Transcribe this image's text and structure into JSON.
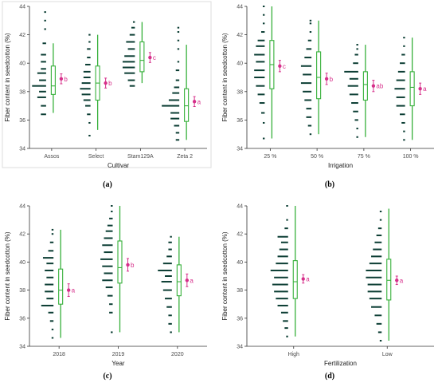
{
  "colors": {
    "dots": "#0b3d33",
    "box": "#36b03a",
    "mean": "#d62f8a",
    "panel_border": "#dddddd"
  },
  "chart_data": [
    {
      "panel": "(a)",
      "type": "raincloud",
      "xlabel": "Cultivar",
      "ylabel": "Fiber content in seedcotton (%)",
      "ylim": [
        34,
        44
      ],
      "yticks": [
        34,
        36,
        38,
        40,
        42,
        44
      ],
      "categories": [
        "Assos",
        "Select",
        "Stam129A",
        "Zeta 2"
      ],
      "boxes": [
        {
          "whisker_low": 36.5,
          "q1": 37.8,
          "median": 38.4,
          "q3": 39.8,
          "whisker_high": 41.4
        },
        {
          "whisker_low": 35.3,
          "q1": 37.4,
          "median": 38.6,
          "q3": 39.8,
          "whisker_high": 42.0
        },
        {
          "whisker_low": 38.6,
          "q1": 39.4,
          "median": 40.2,
          "q3": 41.5,
          "whisker_high": 42.9
        },
        {
          "whisker_low": 34.6,
          "q1": 35.9,
          "median": 37.0,
          "q3": 38.2,
          "whisker_high": 41.3
        }
      ],
      "means": [
        38.9,
        38.6,
        40.4,
        37.3
      ],
      "ci": [
        0.35,
        0.35,
        0.35,
        0.35
      ],
      "letters": [
        "b",
        "b",
        "c",
        "a"
      ],
      "dots": [
        [
          [
            36.4,
            3
          ],
          [
            37.0,
            3
          ],
          [
            37.6,
            5
          ],
          [
            38.0,
            4
          ],
          [
            38.4,
            8
          ],
          [
            38.8,
            4
          ],
          [
            39.3,
            5
          ],
          [
            39.6,
            3
          ],
          [
            40.1,
            3
          ],
          [
            40.6,
            3
          ],
          [
            41.4,
            2
          ],
          [
            42.4,
            1
          ],
          [
            43.0,
            1
          ],
          [
            43.6,
            1
          ]
        ],
        [
          [
            34.9,
            1
          ],
          [
            35.8,
            1
          ],
          [
            36.4,
            2
          ],
          [
            37.0,
            3
          ],
          [
            37.4,
            4
          ],
          [
            37.8,
            5
          ],
          [
            38.2,
            6
          ],
          [
            38.6,
            5
          ],
          [
            39.0,
            4
          ],
          [
            39.4,
            4
          ],
          [
            39.9,
            3
          ],
          [
            40.4,
            2
          ],
          [
            41.0,
            2
          ],
          [
            41.5,
            1
          ],
          [
            42.0,
            1
          ]
        ],
        [
          [
            38.4,
            3
          ],
          [
            38.8,
            4
          ],
          [
            39.3,
            6
          ],
          [
            39.7,
            7
          ],
          [
            40.1,
            7
          ],
          [
            40.5,
            6
          ],
          [
            41.0,
            4
          ],
          [
            41.5,
            5
          ],
          [
            42.0,
            3
          ],
          [
            42.5,
            2
          ],
          [
            42.9,
            1
          ]
        ],
        [
          [
            34.6,
            2
          ],
          [
            35.1,
            2
          ],
          [
            35.6,
            3
          ],
          [
            36.1,
            5
          ],
          [
            36.5,
            5
          ],
          [
            37.0,
            10
          ],
          [
            37.4,
            6
          ],
          [
            37.9,
            4
          ],
          [
            38.3,
            3
          ],
          [
            38.8,
            2
          ],
          [
            39.5,
            2
          ],
          [
            40.1,
            1
          ],
          [
            41.0,
            1
          ],
          [
            41.6,
            1
          ],
          [
            42.2,
            1
          ],
          [
            42.5,
            1
          ]
        ]
      ]
    },
    {
      "panel": "(b)",
      "type": "raincloud",
      "xlabel": "Irrigation",
      "ylabel": "Fiber content in seedcotton (%)",
      "ylim": [
        34,
        44
      ],
      "yticks": [
        34,
        36,
        38,
        40,
        42,
        44
      ],
      "categories": [
        "25 %",
        "50 %",
        "75 %",
        "100 %"
      ],
      "boxes": [
        {
          "whisker_low": 34.7,
          "q1": 38.2,
          "median": 39.9,
          "q3": 41.6,
          "whisker_high": 44.0
        },
        {
          "whisker_low": 35.0,
          "q1": 37.5,
          "median": 39.0,
          "q3": 40.8,
          "whisker_high": 43.0
        },
        {
          "whisker_low": 34.8,
          "q1": 37.4,
          "median": 38.5,
          "q3": 39.4,
          "whisker_high": 41.3
        },
        {
          "whisker_low": 34.6,
          "q1": 37.0,
          "median": 38.3,
          "q3": 39.4,
          "whisker_high": 41.8
        }
      ],
      "means": [
        39.8,
        38.9,
        38.4,
        38.2
      ],
      "ci": [
        0.4,
        0.4,
        0.4,
        0.4
      ],
      "letters": [
        "c",
        "b",
        "ab",
        "a"
      ],
      "dots": [
        [
          [
            34.7,
            1
          ],
          [
            35.8,
            1
          ],
          [
            36.5,
            2
          ],
          [
            37.2,
            3
          ],
          [
            37.8,
            4
          ],
          [
            38.4,
            5
          ],
          [
            39.0,
            6
          ],
          [
            39.5,
            6
          ],
          [
            40.1,
            5
          ],
          [
            40.6,
            6
          ],
          [
            41.2,
            5
          ],
          [
            41.6,
            4
          ],
          [
            42.2,
            2
          ],
          [
            42.8,
            1
          ],
          [
            43.4,
            1
          ],
          [
            44.0,
            1
          ]
        ],
        [
          [
            35.0,
            1
          ],
          [
            35.6,
            2
          ],
          [
            36.2,
            3
          ],
          [
            36.8,
            3
          ],
          [
            37.4,
            4
          ],
          [
            38.0,
            5
          ],
          [
            38.6,
            6
          ],
          [
            39.2,
            5
          ],
          [
            39.8,
            6
          ],
          [
            40.4,
            4
          ],
          [
            41.0,
            3
          ],
          [
            41.6,
            2
          ],
          [
            42.2,
            1
          ],
          [
            42.8,
            1
          ],
          [
            43.0,
            1
          ]
        ],
        [
          [
            34.8,
            1
          ],
          [
            35.4,
            1
          ],
          [
            36.0,
            2
          ],
          [
            36.6,
            3
          ],
          [
            37.2,
            4
          ],
          [
            37.8,
            5
          ],
          [
            38.4,
            6
          ],
          [
            38.9,
            5
          ],
          [
            39.4,
            8
          ],
          [
            40.0,
            3
          ],
          [
            40.6,
            2
          ],
          [
            41.0,
            1
          ],
          [
            41.3,
            1
          ]
        ],
        [
          [
            34.6,
            1
          ],
          [
            35.2,
            1
          ],
          [
            35.8,
            2
          ],
          [
            36.4,
            3
          ],
          [
            37.0,
            5
          ],
          [
            37.6,
            5
          ],
          [
            38.2,
            6
          ],
          [
            38.8,
            5
          ],
          [
            39.4,
            4
          ],
          [
            40.0,
            3
          ],
          [
            40.6,
            2
          ],
          [
            41.2,
            1
          ],
          [
            41.8,
            1
          ]
        ]
      ]
    },
    {
      "panel": "(c)",
      "type": "raincloud",
      "xlabel": "Year",
      "ylabel": "Fiber content in seedcotton (%)",
      "ylim": [
        34,
        44
      ],
      "yticks": [
        34,
        36,
        38,
        40,
        42,
        44
      ],
      "categories": [
        "2018",
        "2019",
        "2020"
      ],
      "boxes": [
        {
          "whisker_low": 34.6,
          "q1": 37.0,
          "median": 38.0,
          "q3": 39.5,
          "whisker_high": 42.3
        },
        {
          "whisker_low": 35.0,
          "q1": 38.5,
          "median": 39.6,
          "q3": 41.5,
          "whisker_high": 44.0
        },
        {
          "whisker_low": 35.0,
          "q1": 37.6,
          "median": 38.6,
          "q3": 39.8,
          "whisker_high": 41.8
        }
      ],
      "means": [
        38.0,
        39.8,
        38.7
      ],
      "ci": [
        0.45,
        0.45,
        0.45
      ],
      "letters": [
        "a",
        "b",
        "a"
      ],
      "dots": [
        [
          [
            34.6,
            1
          ],
          [
            35.2,
            1
          ],
          [
            35.8,
            2
          ],
          [
            36.4,
            3
          ],
          [
            36.9,
            7
          ],
          [
            37.4,
            4
          ],
          [
            37.9,
            5
          ],
          [
            38.4,
            5
          ],
          [
            38.9,
            4
          ],
          [
            39.4,
            5
          ],
          [
            39.9,
            4
          ],
          [
            40.3,
            6
          ],
          [
            40.8,
            3
          ],
          [
            41.4,
            2
          ],
          [
            42.0,
            1
          ],
          [
            42.3,
            1
          ]
        ],
        [
          [
            35.0,
            1
          ],
          [
            36.4,
            2
          ],
          [
            37.0,
            2
          ],
          [
            37.6,
            3
          ],
          [
            38.2,
            4
          ],
          [
            38.7,
            6
          ],
          [
            39.2,
            5
          ],
          [
            39.7,
            6
          ],
          [
            40.2,
            7
          ],
          [
            40.7,
            5
          ],
          [
            41.2,
            6
          ],
          [
            41.7,
            5
          ],
          [
            42.2,
            4
          ],
          [
            42.6,
            3
          ],
          [
            43.1,
            2
          ],
          [
            43.6,
            1
          ],
          [
            44.0,
            1
          ]
        ],
        [
          [
            35.0,
            1
          ],
          [
            35.6,
            2
          ],
          [
            36.2,
            2
          ],
          [
            36.8,
            3
          ],
          [
            37.4,
            4
          ],
          [
            38.0,
            5
          ],
          [
            38.6,
            6
          ],
          [
            39.0,
            4
          ],
          [
            39.4,
            8
          ],
          [
            39.9,
            5
          ],
          [
            40.4,
            3
          ],
          [
            40.9,
            2
          ],
          [
            41.4,
            2
          ],
          [
            41.8,
            1
          ]
        ]
      ]
    },
    {
      "panel": "(d)",
      "type": "raincloud",
      "xlabel": "Fertilization",
      "ylabel": "Fiber content in seedcotton (%)",
      "ylim": [
        34,
        44
      ],
      "yticks": [
        34,
        36,
        38,
        40,
        42,
        44
      ],
      "categories": [
        "High",
        "Low"
      ],
      "boxes": [
        {
          "whisker_low": 34.7,
          "q1": 37.4,
          "median": 38.6,
          "q3": 40.1,
          "whisker_high": 44.0
        },
        {
          "whisker_low": 34.4,
          "q1": 37.3,
          "median": 38.7,
          "q3": 40.2,
          "whisker_high": 43.8
        }
      ],
      "means": [
        38.8,
        38.7
      ],
      "ci": [
        0.3,
        0.3
      ],
      "letters": [
        "a",
        "a"
      ],
      "dots": [
        [
          [
            34.7,
            1
          ],
          [
            35.3,
            2
          ],
          [
            35.8,
            3
          ],
          [
            36.4,
            4
          ],
          [
            36.9,
            6
          ],
          [
            37.4,
            7
          ],
          [
            37.9,
            8
          ],
          [
            38.4,
            9
          ],
          [
            38.9,
            8
          ],
          [
            39.4,
            10
          ],
          [
            39.9,
            7
          ],
          [
            40.4,
            6
          ],
          [
            40.9,
            5
          ],
          [
            41.4,
            4
          ],
          [
            41.8,
            6
          ],
          [
            42.4,
            2
          ],
          [
            43.0,
            1
          ],
          [
            44.0,
            1
          ]
        ],
        [
          [
            34.4,
            1
          ],
          [
            35.0,
            2
          ],
          [
            35.6,
            3
          ],
          [
            36.2,
            4
          ],
          [
            36.8,
            6
          ],
          [
            37.4,
            7
          ],
          [
            37.9,
            8
          ],
          [
            38.4,
            8
          ],
          [
            38.9,
            9
          ],
          [
            39.4,
            9
          ],
          [
            39.9,
            7
          ],
          [
            40.4,
            6
          ],
          [
            40.9,
            5
          ],
          [
            41.4,
            4
          ],
          [
            41.9,
            3
          ],
          [
            42.4,
            2
          ],
          [
            43.0,
            1
          ],
          [
            43.6,
            1
          ]
        ]
      ]
    }
  ]
}
